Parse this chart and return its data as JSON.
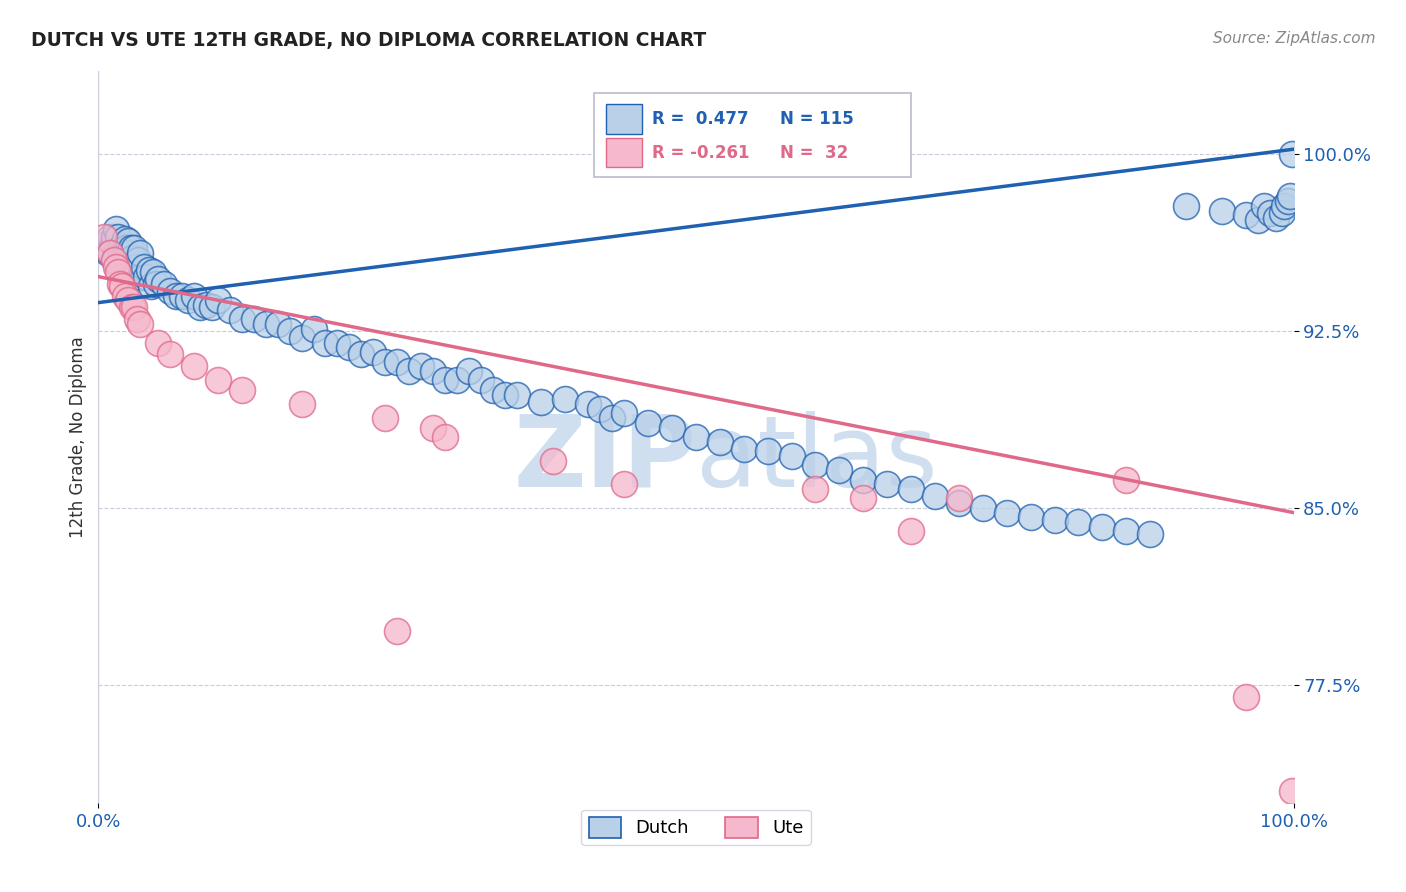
{
  "title": "DUTCH VS UTE 12TH GRADE, NO DIPLOMA CORRELATION CHART",
  "source": "Source: ZipAtlas.com",
  "ylabel": "12th Grade, No Diploma",
  "xlim": [
    0.0,
    1.0
  ],
  "ylim": [
    0.725,
    1.035
  ],
  "yticks": [
    0.775,
    0.85,
    0.925,
    1.0
  ],
  "ytick_labels": [
    "77.5%",
    "85.0%",
    "92.5%",
    "100.0%"
  ],
  "xtick_labels": [
    "0.0%",
    "100.0%"
  ],
  "legend_dutch_R": "0.477",
  "legend_dutch_N": "115",
  "legend_ute_R": "-0.261",
  "legend_ute_N": "32",
  "dutch_color": "#b8d0e8",
  "ute_color": "#f5b8cc",
  "dutch_line_color": "#2060b0",
  "ute_line_color": "#e06888",
  "watermark_color": "#d0dff0",
  "dutch_line_y0": 0.937,
  "dutch_line_y1": 1.002,
  "ute_line_y0": 0.948,
  "ute_line_y1": 0.848,
  "dutch_x": [
    0.005,
    0.007,
    0.008,
    0.01,
    0.01,
    0.012,
    0.013,
    0.014,
    0.015,
    0.015,
    0.016,
    0.017,
    0.018,
    0.018,
    0.019,
    0.02,
    0.02,
    0.021,
    0.022,
    0.022,
    0.023,
    0.024,
    0.025,
    0.025,
    0.026,
    0.027,
    0.028,
    0.03,
    0.03,
    0.032,
    0.033,
    0.035,
    0.036,
    0.038,
    0.04,
    0.042,
    0.044,
    0.046,
    0.048,
    0.05,
    0.055,
    0.06,
    0.065,
    0.07,
    0.075,
    0.08,
    0.085,
    0.09,
    0.095,
    0.1,
    0.11,
    0.12,
    0.13,
    0.14,
    0.15,
    0.16,
    0.17,
    0.18,
    0.19,
    0.2,
    0.21,
    0.22,
    0.23,
    0.24,
    0.25,
    0.26,
    0.27,
    0.28,
    0.29,
    0.3,
    0.31,
    0.32,
    0.33,
    0.34,
    0.35,
    0.37,
    0.39,
    0.41,
    0.42,
    0.43,
    0.44,
    0.46,
    0.48,
    0.5,
    0.52,
    0.54,
    0.56,
    0.58,
    0.6,
    0.62,
    0.64,
    0.66,
    0.68,
    0.7,
    0.72,
    0.74,
    0.76,
    0.78,
    0.8,
    0.82,
    0.84,
    0.86,
    0.88,
    0.91,
    0.94,
    0.96,
    0.97,
    0.975,
    0.98,
    0.985,
    0.99,
    0.992,
    0.995,
    0.997,
    0.999
  ],
  "dutch_y": [
    0.96,
    0.962,
    0.958,
    0.958,
    0.965,
    0.962,
    0.965,
    0.955,
    0.968,
    0.958,
    0.965,
    0.952,
    0.955,
    0.96,
    0.958,
    0.955,
    0.961,
    0.96,
    0.958,
    0.964,
    0.96,
    0.955,
    0.958,
    0.963,
    0.958,
    0.96,
    0.956,
    0.95,
    0.96,
    0.952,
    0.955,
    0.958,
    0.948,
    0.952,
    0.948,
    0.951,
    0.944,
    0.95,
    0.945,
    0.947,
    0.945,
    0.942,
    0.94,
    0.94,
    0.938,
    0.94,
    0.935,
    0.936,
    0.935,
    0.938,
    0.934,
    0.93,
    0.93,
    0.928,
    0.928,
    0.925,
    0.922,
    0.926,
    0.92,
    0.92,
    0.918,
    0.915,
    0.916,
    0.912,
    0.912,
    0.908,
    0.91,
    0.908,
    0.904,
    0.904,
    0.908,
    0.904,
    0.9,
    0.898,
    0.898,
    0.895,
    0.896,
    0.894,
    0.892,
    0.888,
    0.89,
    0.886,
    0.884,
    0.88,
    0.878,
    0.875,
    0.874,
    0.872,
    0.868,
    0.866,
    0.862,
    0.86,
    0.858,
    0.855,
    0.852,
    0.85,
    0.848,
    0.846,
    0.845,
    0.844,
    0.842,
    0.84,
    0.839,
    0.978,
    0.976,
    0.974,
    0.972,
    0.978,
    0.975,
    0.973,
    0.975,
    0.978,
    0.98,
    0.982,
    1.0
  ],
  "ute_x": [
    0.005,
    0.01,
    0.013,
    0.015,
    0.016,
    0.018,
    0.02,
    0.022,
    0.025,
    0.028,
    0.03,
    0.032,
    0.035,
    0.05,
    0.06,
    0.08,
    0.1,
    0.12,
    0.17,
    0.24,
    0.25,
    0.28,
    0.29,
    0.38,
    0.44,
    0.6,
    0.64,
    0.68,
    0.72,
    0.86,
    0.96,
    0.999
  ],
  "ute_y": [
    0.965,
    0.958,
    0.955,
    0.952,
    0.95,
    0.945,
    0.944,
    0.94,
    0.938,
    0.935,
    0.935,
    0.93,
    0.928,
    0.92,
    0.915,
    0.91,
    0.904,
    0.9,
    0.894,
    0.888,
    0.798,
    0.884,
    0.88,
    0.87,
    0.86,
    0.858,
    0.854,
    0.84,
    0.854,
    0.862,
    0.77,
    0.73
  ]
}
